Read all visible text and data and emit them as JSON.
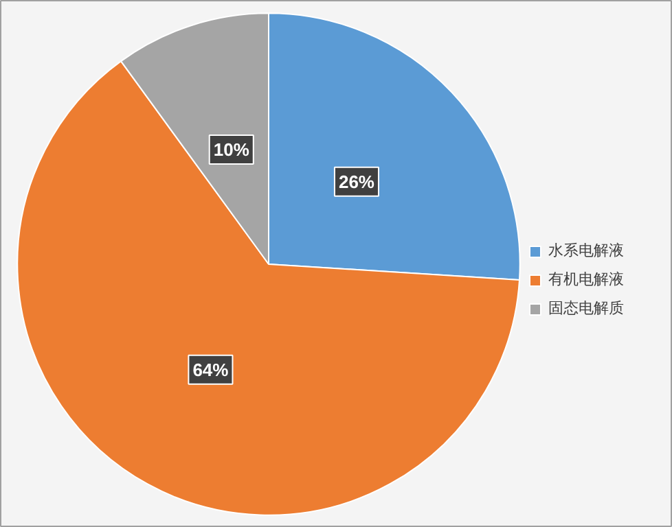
{
  "chart_data": {
    "type": "pie",
    "categories": [
      "水系电解液",
      "有机电解液",
      "固态电解质"
    ],
    "values": [
      26,
      64,
      10
    ],
    "value_labels": [
      "26%",
      "64%",
      "10%"
    ],
    "colors": [
      "#5b9bd5",
      "#ed7d31",
      "#a5a5a5"
    ],
    "legend": "right"
  }
}
